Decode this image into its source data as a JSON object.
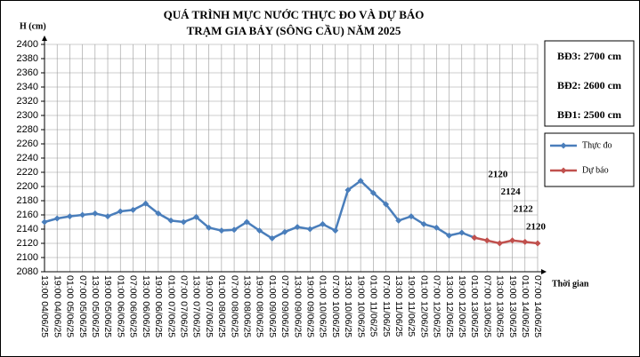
{
  "chart_data": {
    "type": "line",
    "title": [
      "QUÁ TRÌNH MỰC NƯỚC THỰC ĐO VÀ DỰ BÁO",
      "TRẠM GIA BẢY (SÔNG CẦU) NĂM 2025"
    ],
    "y_label": "H (cm)",
    "x_label": "Thời gian",
    "annotations": [
      "BĐ3: 2700 cm",
      "BĐ2: 2600 cm",
      "BĐ1: 2500 cm"
    ],
    "categories": [
      "13:00 04/06/25",
      "19:00 04/06/25",
      "01:00 05/06/25",
      "07:00 05/06/25",
      "13:00 05/06/25",
      "19:00 05/06/25",
      "01:00 06/06/25",
      "07:00 06/06/25",
      "13:00 06/06/25",
      "19:00 06/06/25",
      "01:00 07/06/25",
      "07:00 07/06/25",
      "13:00 07/06/25",
      "19:00 07/06/25",
      "01:00 08/06/25",
      "07:00 08/06/25",
      "13:00 08/06/25",
      "19:00 08/06/25",
      "01:00 09/06/25",
      "07:00 09/06/25",
      "13:00 09/06/25",
      "19:00 09/06/25",
      "01:00 10/06/25",
      "07:00 10/06/25",
      "13:00 10/06/25",
      "19:00 10/06/25",
      "01:00 11/06/25",
      "07:00 11/06/25",
      "13:00 11/06/25",
      "19:00 11/06/25",
      "01:00 12/06/25",
      "07:00 12/06/25",
      "13:00 12/06/25",
      "19:00 12/06/25",
      "01:00 13/06/25",
      "07:00 13/06/25",
      "13:00 13/06/25",
      "19:00 13/06/25",
      "01:00 14/06/25",
      "07:00 14/06/25"
    ],
    "series": [
      {
        "name": "Thực đo",
        "color": "#4a7ebb",
        "values": [
          2150,
          2155,
          2158,
          2160,
          2162,
          2158,
          2165,
          2167,
          2176,
          2162,
          2152,
          2150,
          2157,
          2142,
          2138,
          2139,
          2150,
          2138,
          2127,
          2136,
          2143,
          2140,
          2147,
          2138,
          2195,
          2208,
          2191,
          2175,
          2152,
          2158,
          2147,
          2142,
          2131,
          2135,
          2128,
          null,
          null,
          null,
          null,
          null
        ]
      },
      {
        "name": "Dự báo",
        "color": "#c0504d",
        "values": [
          null,
          null,
          null,
          null,
          null,
          null,
          null,
          null,
          null,
          null,
          null,
          null,
          null,
          null,
          null,
          null,
          null,
          null,
          null,
          null,
          null,
          null,
          null,
          null,
          null,
          null,
          null,
          null,
          null,
          null,
          null,
          null,
          null,
          null,
          2128,
          2124,
          2120,
          2124,
          2122,
          2120
        ],
        "value_labels": [
          null,
          null,
          null,
          null,
          null,
          null,
          null,
          null,
          null,
          null,
          null,
          null,
          null,
          null,
          null,
          null,
          null,
          null,
          null,
          null,
          null,
          null,
          null,
          null,
          null,
          null,
          null,
          null,
          null,
          null,
          null,
          null,
          null,
          null,
          null,
          null,
          "2120",
          "2124",
          "2122",
          "2120"
        ]
      }
    ],
    "ylim": [
      2080,
      2400
    ],
    "yticks": [
      2080,
      2100,
      2120,
      2140,
      2160,
      2180,
      2200,
      2220,
      2240,
      2260,
      2280,
      2300,
      2320,
      2340,
      2360,
      2380,
      2400
    ],
    "grid": true
  }
}
